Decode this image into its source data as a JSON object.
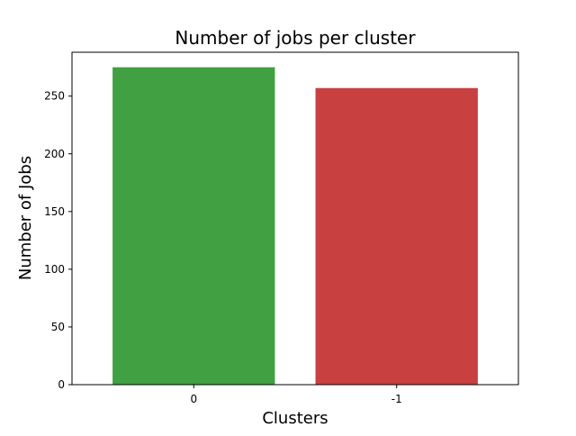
{
  "chart_data": {
    "type": "bar",
    "title": "Number of jobs per cluster",
    "xlabel": "Clusters",
    "ylabel": "Number of Jobs",
    "categories": [
      "0",
      "-1"
    ],
    "values": [
      275,
      257
    ],
    "colors": [
      "#41a041",
      "#c84040"
    ],
    "ylim": [
      0,
      288
    ],
    "yticks": [
      0,
      50,
      100,
      150,
      200,
      250
    ],
    "grid": false,
    "legend": "none"
  }
}
